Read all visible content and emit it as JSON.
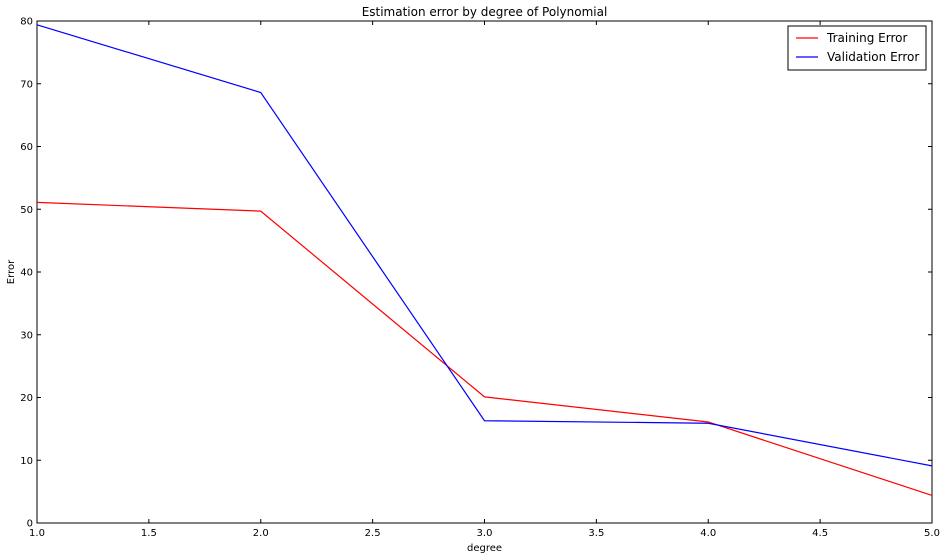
{
  "chart_data": {
    "type": "line",
    "title": "Estimation error by degree of Polynomial",
    "xlabel": "degree",
    "ylabel": "Error",
    "xlim": [
      1.0,
      5.0
    ],
    "ylim": [
      0,
      80
    ],
    "xticks": [
      "1.0",
      "1.5",
      "2.0",
      "2.5",
      "3.0",
      "3.5",
      "4.0",
      "4.5",
      "5.0"
    ],
    "yticks": [
      "0",
      "10",
      "20",
      "30",
      "40",
      "50",
      "60",
      "70",
      "80"
    ],
    "grid": false,
    "legend_position": "top-right",
    "x": [
      1,
      2,
      3,
      4,
      5
    ],
    "series": [
      {
        "name": "Training Error",
        "color": "#ff0000",
        "values": [
          51.1,
          49.7,
          20.1,
          16.1,
          4.4
        ]
      },
      {
        "name": "Validation Error",
        "color": "#0000ff",
        "values": [
          79.4,
          68.6,
          16.3,
          15.9,
          9.1
        ]
      }
    ]
  }
}
